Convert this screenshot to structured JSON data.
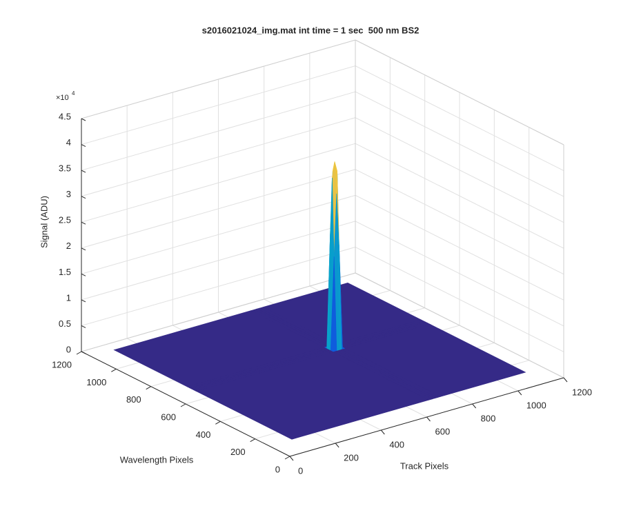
{
  "chart_data": {
    "type": "surface",
    "title": "s2016021024_img.mat int time = 1 sec  500 nm BS2",
    "xlabel": "Track Pixels",
    "ylabel": "Wavelength Pixels",
    "zlabel": "Signal (ADU)",
    "z_multiplier": {
      "base": "×10",
      "exponent": "4"
    },
    "x": [
      100,
      700,
      715,
      726,
      737,
      752,
      1124
    ],
    "y": [
      120,
      670,
      685,
      696,
      707,
      722,
      1144
    ],
    "z": [
      [
        0,
        0,
        0,
        0,
        0,
        0,
        0
      ],
      [
        0,
        0,
        0,
        0,
        0,
        0,
        0
      ],
      [
        0,
        0,
        1.8,
        3.0,
        2.0,
        0,
        0
      ],
      [
        0,
        0,
        3.3,
        3.6,
        3.4,
        0,
        0
      ],
      [
        0,
        0,
        2.2,
        3.4,
        3.5,
        0,
        0
      ],
      [
        0,
        0,
        0,
        0,
        0,
        0,
        0
      ],
      [
        0,
        0,
        0,
        0,
        0,
        0,
        0
      ]
    ],
    "xlim": [
      0,
      1200
    ],
    "ylim": [
      0,
      1200
    ],
    "zlim": [
      0,
      4.5
    ],
    "xticks": [
      0,
      200,
      400,
      600,
      800,
      1000,
      1200
    ],
    "yticks": [
      0,
      200,
      400,
      600,
      800,
      1000,
      1200
    ],
    "zticks": [
      0,
      0.5,
      1,
      1.5,
      2,
      2.5,
      3,
      3.5,
      4,
      4.5
    ],
    "grid": true,
    "colormap": [
      "#352a87",
      "#0f5cdd",
      "#1481d6",
      "#06a4ca",
      "#2eb7a4",
      "#87bf77",
      "#d1bb59",
      "#fec832",
      "#f9fb0e"
    ]
  }
}
